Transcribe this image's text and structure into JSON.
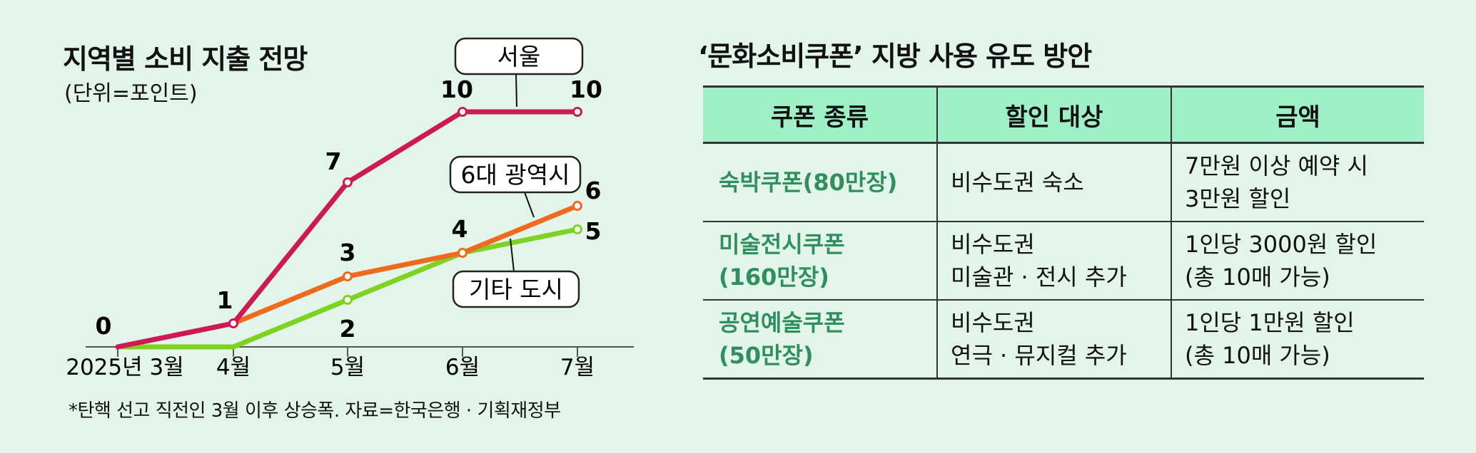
{
  "chart_data": {
    "type": "line",
    "title": "지역별 소비 지출 전망",
    "unit": "(단위=포인트)",
    "categories": [
      "2025년 3월",
      "4월",
      "5월",
      "6월",
      "7월"
    ],
    "series": [
      {
        "name": "서울",
        "values": [
          0,
          1,
          7,
          10,
          10
        ],
        "color": "#cc1a55"
      },
      {
        "name": "6대 광역시",
        "values": [
          0,
          1,
          3,
          4,
          6
        ],
        "color": "#f06a1e"
      },
      {
        "name": "기타 도시",
        "values": [
          0,
          0,
          2,
          4,
          5
        ],
        "color": "#7ed321"
      }
    ],
    "data_labels": [
      {
        "series": 0,
        "index": 0,
        "text": "0"
      },
      {
        "series": 0,
        "index": 1,
        "text": "1"
      },
      {
        "series": 0,
        "index": 2,
        "text": "7"
      },
      {
        "series": 0,
        "index": 3,
        "text": "10"
      },
      {
        "series": 0,
        "index": 4,
        "text": "10"
      },
      {
        "series": 1,
        "index": 2,
        "text": "3"
      },
      {
        "series": 1,
        "index": 3,
        "text": "4"
      },
      {
        "series": 1,
        "index": 4,
        "text": "6"
      },
      {
        "series": 2,
        "index": 2,
        "text": "2"
      },
      {
        "series": 2,
        "index": 4,
        "text": "5"
      }
    ],
    "ylim": [
      0,
      10
    ],
    "legend": "callouts on lines",
    "grid": false
  },
  "footnote": "*탄핵 선고 직전인 3월 이후 상승폭. 자료=한국은행 · 기획재정부",
  "table": {
    "title": "‘문화소비쿠폰’ 지방 사용 유도 방안",
    "headers": [
      "쿠폰 종류",
      "할인 대상",
      "금액"
    ],
    "rows": [
      [
        "숙박쿠폰(80만장)",
        "비수도권 숙소",
        "7만원 이상 예약 시\n3만원 할인"
      ],
      [
        "미술전시쿠폰\n(160만장)",
        "비수도권\n미술관 · 전시 추가",
        "1인당 3000원 할인\n(총 10매 가능)"
      ],
      [
        "공연예술쿠폰\n(50만장)",
        "비수도권\n연극 · 뮤지컬 추가",
        "1인당 1만원 할인\n(총 10매 가능)"
      ]
    ]
  }
}
